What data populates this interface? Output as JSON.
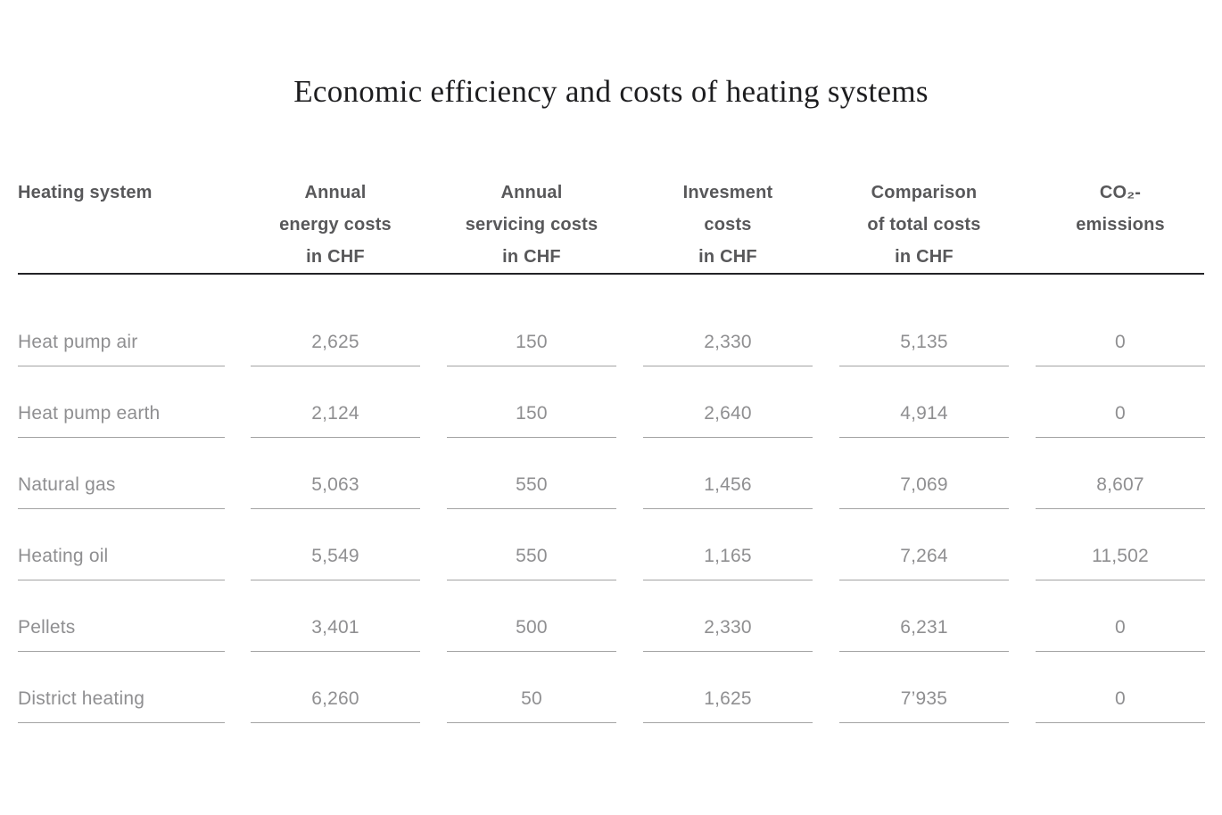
{
  "title": "Economic efficiency and costs of heating systems",
  "colors": {
    "background": "#ffffff",
    "title_text": "#1d1d1f",
    "header_text": "#58585a",
    "header_divider": "#232327",
    "data_text": "#8f8f91",
    "cell_underline": "#a3a3a3"
  },
  "table": {
    "columns": [
      {
        "lines": [
          "Heating system"
        ]
      },
      {
        "lines": [
          "Annual",
          "energy costs",
          "in CHF"
        ]
      },
      {
        "lines": [
          "Annual",
          "servicing costs",
          "in CHF"
        ]
      },
      {
        "lines": [
          "Invesment",
          "costs",
          "in CHF"
        ]
      },
      {
        "lines": [
          "Comparison",
          "of total costs",
          "in CHF"
        ]
      },
      {
        "lines": [
          "CO₂-",
          "emissions"
        ]
      }
    ],
    "rows": [
      {
        "name": "Heat pump air",
        "values": [
          "2,625",
          "150",
          "2,330",
          "5,135",
          "0"
        ]
      },
      {
        "name": "Heat pump earth",
        "values": [
          "2,124",
          "150",
          "2,640",
          "4,914",
          "0"
        ]
      },
      {
        "name": "Natural gas",
        "values": [
          "5,063",
          "550",
          "1,456",
          "7,069",
          "8,607"
        ]
      },
      {
        "name": "Heating oil",
        "values": [
          "5,549",
          "550",
          "1,165",
          "7,264",
          "11,502"
        ]
      },
      {
        "name": "Pellets",
        "values": [
          "3,401",
          "500",
          "2,330",
          "6,231",
          "0"
        ]
      },
      {
        "name": "District heating",
        "values": [
          "6,260",
          "50",
          "1,625",
          "7’935",
          "0"
        ]
      }
    ]
  },
  "chart_data": {
    "type": "table",
    "title": "Economic efficiency and costs of heating systems",
    "columns": [
      "Heating system",
      "Annual energy costs in CHF",
      "Annual servicing costs in CHF",
      "Invesment costs in CHF",
      "Comparison of total costs in CHF",
      "CO₂-emissions"
    ],
    "rows": [
      [
        "Heat pump air",
        2625,
        150,
        2330,
        5135,
        0
      ],
      [
        "Heat pump earth",
        2124,
        150,
        2640,
        4914,
        0
      ],
      [
        "Natural gas",
        5063,
        550,
        1456,
        7069,
        8607
      ],
      [
        "Heating oil",
        5549,
        550,
        1165,
        7264,
        11502
      ],
      [
        "Pellets",
        3401,
        500,
        2330,
        6231,
        0
      ],
      [
        "District heating",
        6260,
        50,
        1625,
        7935,
        0
      ]
    ]
  }
}
